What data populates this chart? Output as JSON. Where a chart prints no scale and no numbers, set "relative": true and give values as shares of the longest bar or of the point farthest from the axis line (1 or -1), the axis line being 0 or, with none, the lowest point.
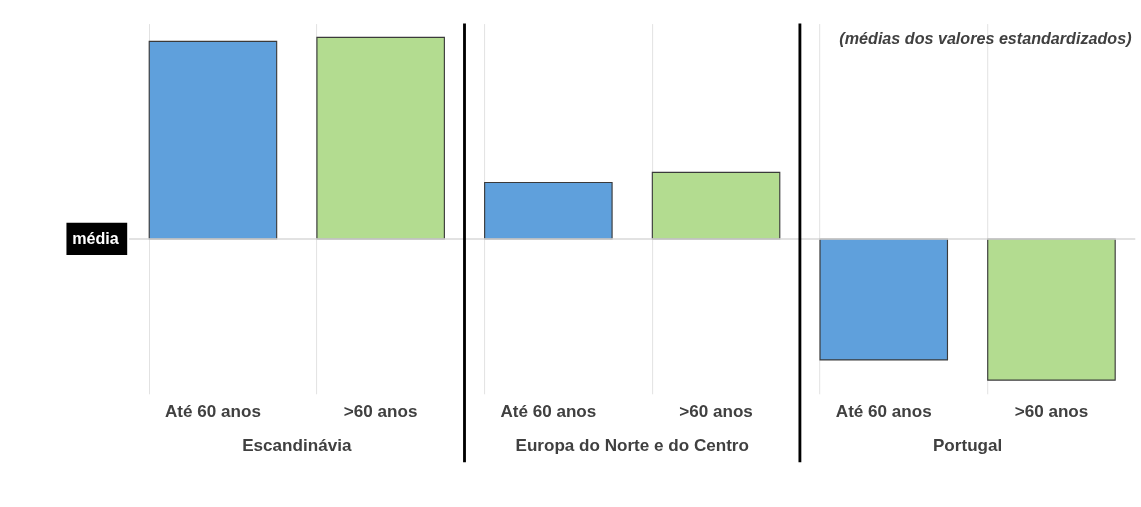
{
  "chart_data": {
    "type": "bar",
    "relative": true,
    "subtitle": "(médias dos valores estandardizados)",
    "categories": [
      "Até 60 anos",
      ">60 anos",
      "Até 60 anos",
      ">60 anos",
      "Até 60 anos",
      ">60 anos"
    ],
    "values": [
      0.98,
      1.0,
      0.28,
      0.33,
      -0.6,
      -0.7
    ],
    "colors": [
      "#5fa0dc",
      "#b3dc90",
      "#5fa0dc",
      "#b3dc90",
      "#5fa0dc",
      "#b3dc90"
    ],
    "annotations": [
      "Escandinávia",
      "Europa do Norte e do Centro",
      "Portugal"
    ],
    "ref_lines": [
      {
        "axis": "y",
        "value": 0,
        "label": "média",
        "color": "#d9d9d9"
      }
    ],
    "grid": "x"
  }
}
